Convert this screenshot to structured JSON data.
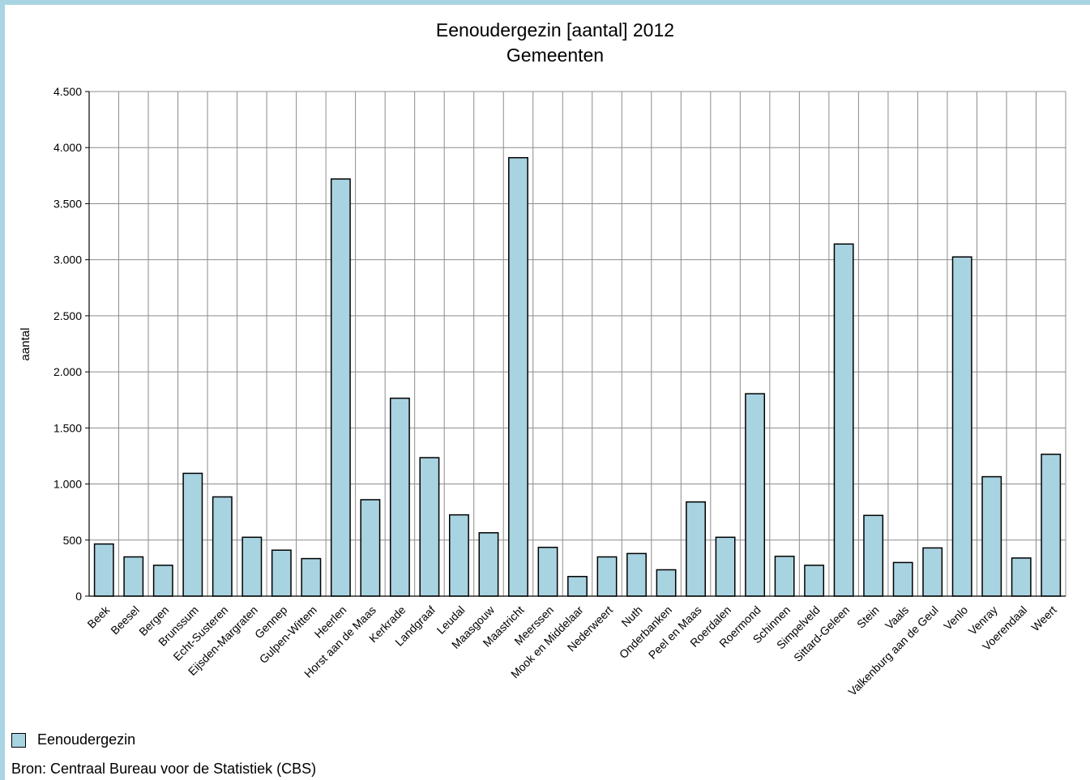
{
  "chart_data": {
    "type": "bar",
    "title": "Eenoudergezin [aantal] 2012",
    "subtitle": "Gemeenten",
    "xlabel": "",
    "ylabel": "aantal",
    "ylim": [
      0,
      4500
    ],
    "yticks": [
      0,
      500,
      1000,
      1500,
      2000,
      2500,
      3000,
      3500,
      4000,
      4500
    ],
    "ytick_labels": [
      "0",
      "500",
      "1.000",
      "1.500",
      "2.000",
      "2.500",
      "3.000",
      "3.500",
      "4.000",
      "4.500"
    ],
    "grid": true,
    "legend_position": "bottom-left",
    "bar_color": "#a8d3e1",
    "categories": [
      "Beek",
      "Beesel",
      "Bergen",
      "Brunssum",
      "Echt-Susteren",
      "Eijsden-Margraten",
      "Gennep",
      "Gulpen-Wittem",
      "Heerlen",
      "Horst aan de Maas",
      "Kerkrade",
      "Landgraaf",
      "Leudal",
      "Maasgouw",
      "Maastricht",
      "Meerssen",
      "Mook en Middelaar",
      "Nederweert",
      "Nuth",
      "Onderbanken",
      "Peel en Maas",
      "Roerdalen",
      "Roermond",
      "Schinnen",
      "Simpelveld",
      "Sittard-Geleen",
      "Stein",
      "Vaals",
      "Valkenburg aan de Geul",
      "Venlo",
      "Venray",
      "Voerendaal",
      "Weert"
    ],
    "series": [
      {
        "name": "Eenoudergezin",
        "values": [
          465,
          350,
          275,
          1095,
          885,
          525,
          410,
          335,
          3720,
          860,
          1765,
          1235,
          725,
          565,
          3910,
          435,
          175,
          350,
          380,
          235,
          840,
          525,
          1805,
          355,
          275,
          3140,
          720,
          300,
          430,
          3025,
          1065,
          340,
          1265
        ]
      }
    ]
  },
  "legend": {
    "label": "Eenoudergezin"
  },
  "source": {
    "text": "Bron: Centraal Bureau voor de Statistiek (CBS)"
  }
}
